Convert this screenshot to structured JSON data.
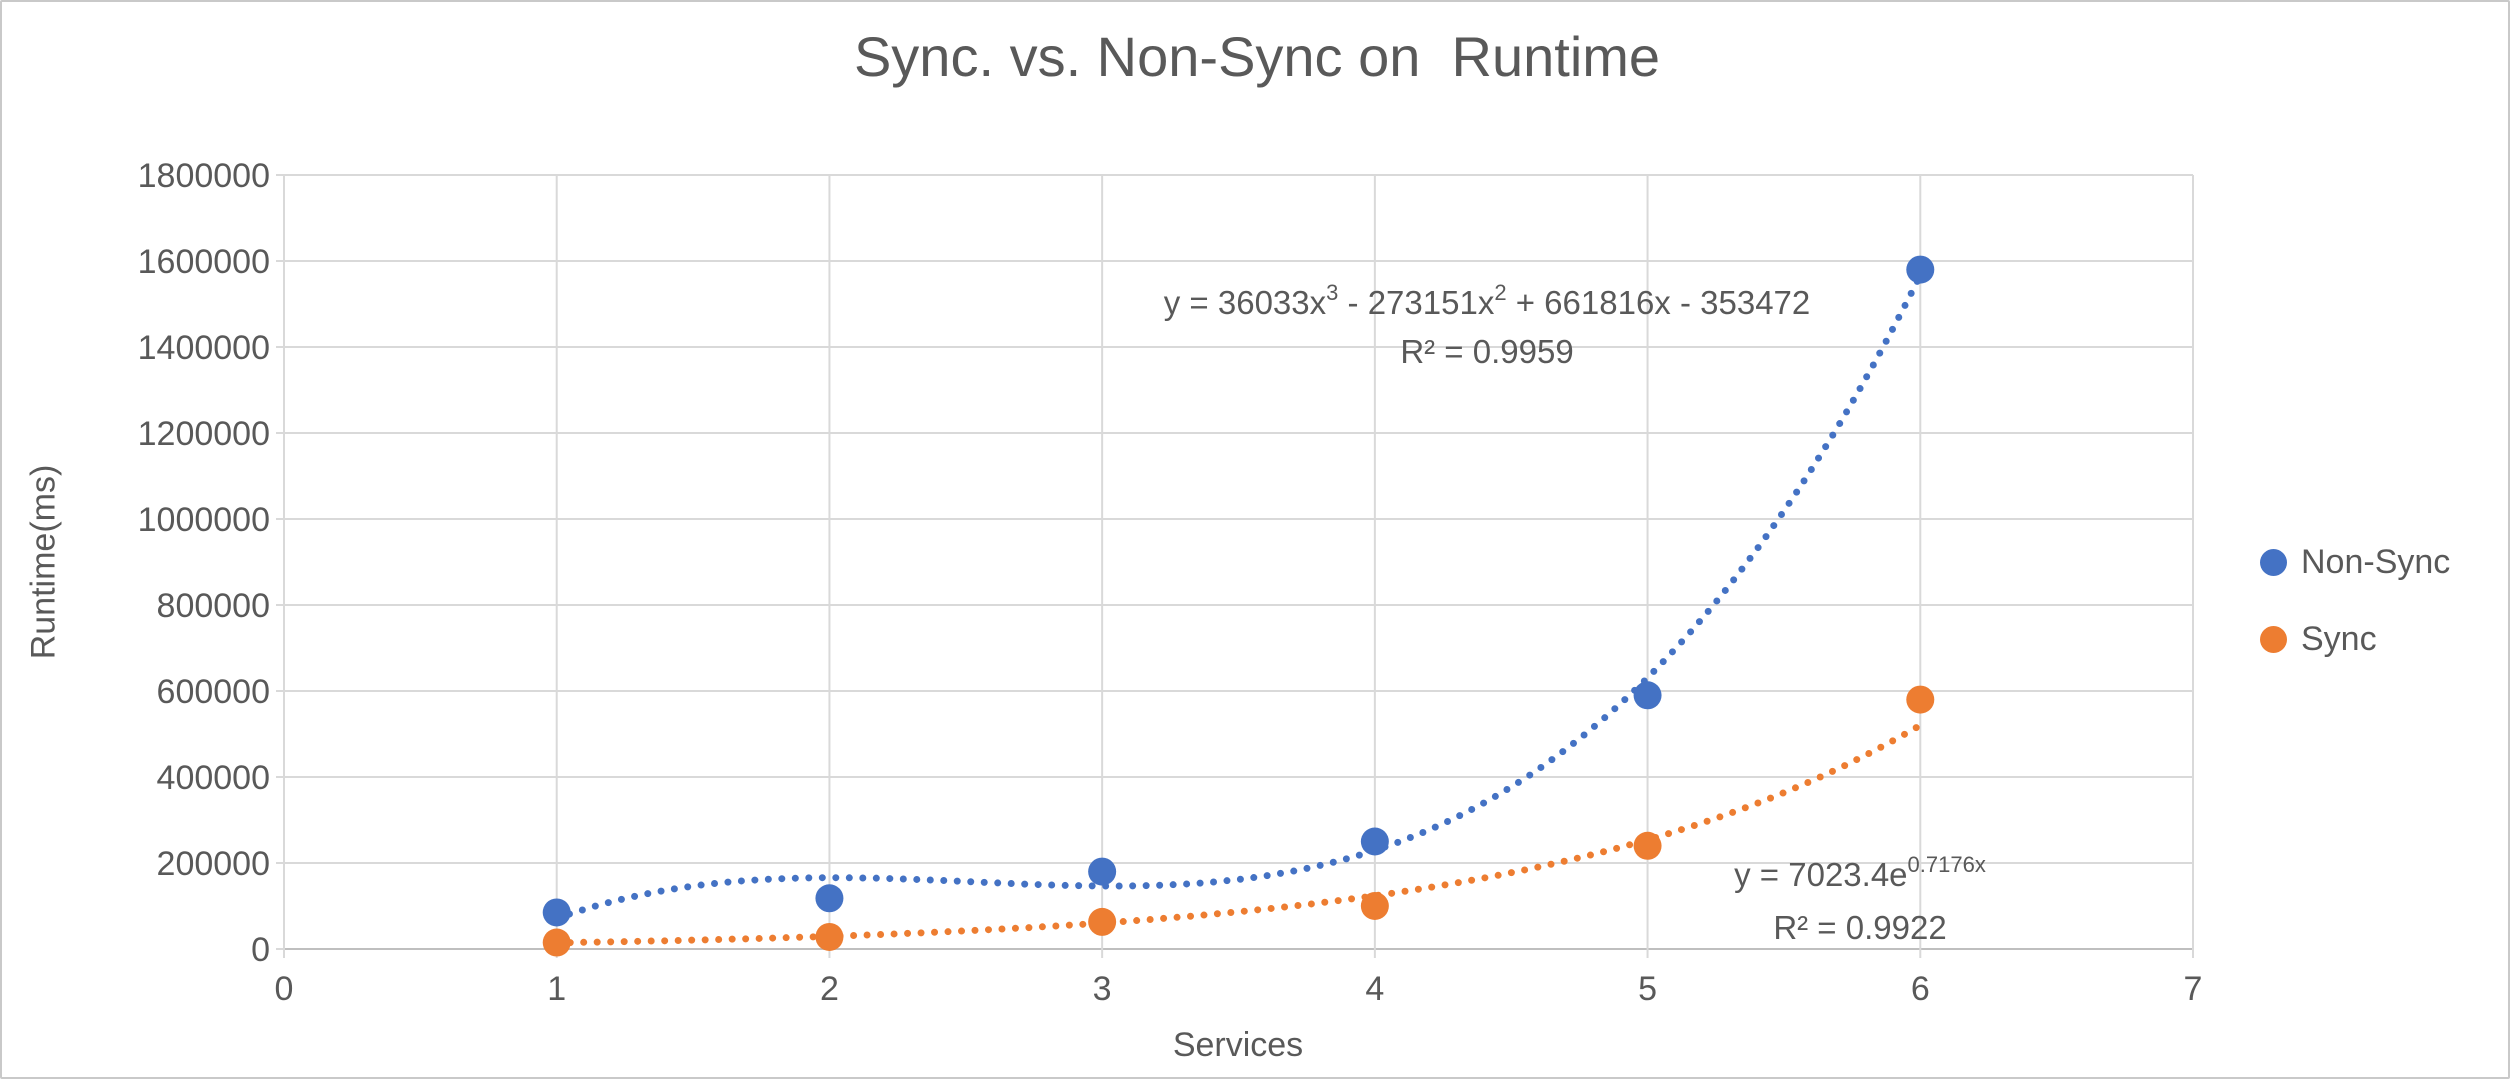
{
  "title": "Sync. vs. Non-Sync on  Runtime",
  "colors": {
    "non_sync": "#4472C4",
    "sync": "#ED7D31",
    "gridline": "#D9D9D9",
    "axis_line": "#BFBFBF",
    "text": "#595959"
  },
  "chart_data": {
    "type": "scatter",
    "title": "Sync. vs. Non-Sync on  Runtime",
    "xlabel": "Services",
    "ylabel": "Runtime(ms)",
    "xlim": [
      0,
      7
    ],
    "ylim": [
      0,
      1800000
    ],
    "x_ticks": [
      0,
      1,
      2,
      3,
      4,
      5,
      6,
      7
    ],
    "y_ticks": [
      0,
      200000,
      400000,
      600000,
      800000,
      1000000,
      1200000,
      1400000,
      1600000,
      1800000
    ],
    "grid": true,
    "legend_position": "right",
    "series": [
      {
        "name": "Non-Sync",
        "color": "#4472C4",
        "x": [
          1,
          2,
          3,
          4,
          5,
          6
        ],
        "y": [
          85000,
          118000,
          180000,
          250000,
          590000,
          1580000
        ],
        "trendline": {
          "kind": "poly3",
          "coeffs": [
            36033,
            -273151,
            661816,
            -353472
          ],
          "domain": [
            1,
            6
          ],
          "equation": "y = 36033x³ - 273151x² + 661816x - 353472",
          "r2": "R² = 0.9959"
        }
      },
      {
        "name": "Sync",
        "color": "#ED7D31",
        "x": [
          1,
          2,
          3,
          4,
          5,
          6
        ],
        "y": [
          15000,
          28000,
          63000,
          100000,
          240000,
          580000
        ],
        "trendline": {
          "kind": "exp",
          "a": 7023.4,
          "b": 0.7176,
          "domain": [
            1,
            6
          ],
          "equation": "y = 7023.4e^(0.7176x)",
          "r2": "R² = 0.9922"
        }
      }
    ]
  },
  "legend": {
    "items": [
      {
        "label": "Non-Sync",
        "color": "#4472C4"
      },
      {
        "label": "Sync",
        "color": "#ED7D31"
      }
    ]
  },
  "annotations": {
    "eq_nonsync": {
      "p1": "y = 36033x",
      "s1": "3",
      "p2": " - 273151x",
      "s2": "2",
      "p3": " + 661816x - 353472",
      "r2": "R² = 0.9959"
    },
    "eq_sync": {
      "p1": "y = 7023.4e",
      "s1": "0.7176x",
      "r2": "R² = 0.9922"
    }
  }
}
